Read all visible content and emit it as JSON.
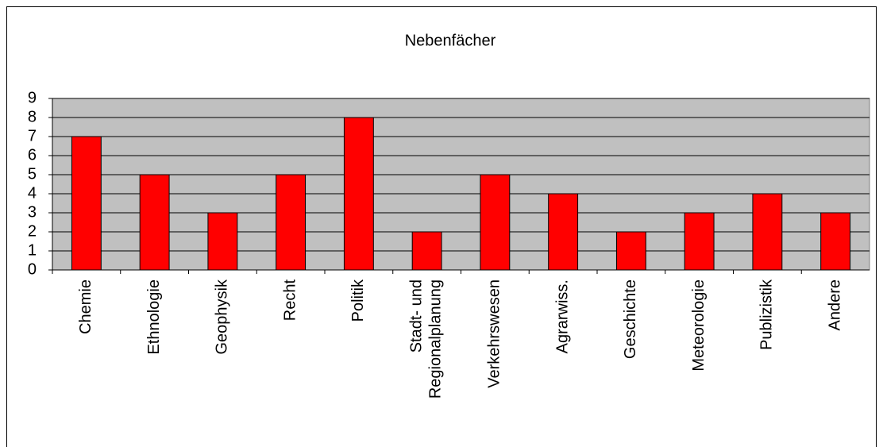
{
  "chart_data": {
    "type": "bar",
    "title": "Nebenfächer",
    "categories": [
      "Chemie",
      "Ethnologie",
      "Geophysik",
      "Recht",
      "Politik",
      "Stadt- und\nRegionalplanung",
      "Verkehrswesen",
      "Agrarwiss.",
      "Geschichte",
      "Meteorologie",
      "Publizistik",
      "Andere"
    ],
    "values": [
      7,
      5,
      3,
      5,
      8,
      2,
      5,
      4,
      2,
      3,
      4,
      3
    ],
    "color": "#ff0000",
    "plot_background": "#c0c0c0",
    "ylim": [
      0,
      9
    ],
    "yticks": [
      0,
      1,
      2,
      3,
      4,
      5,
      6,
      7,
      8,
      9
    ],
    "grid": true
  }
}
